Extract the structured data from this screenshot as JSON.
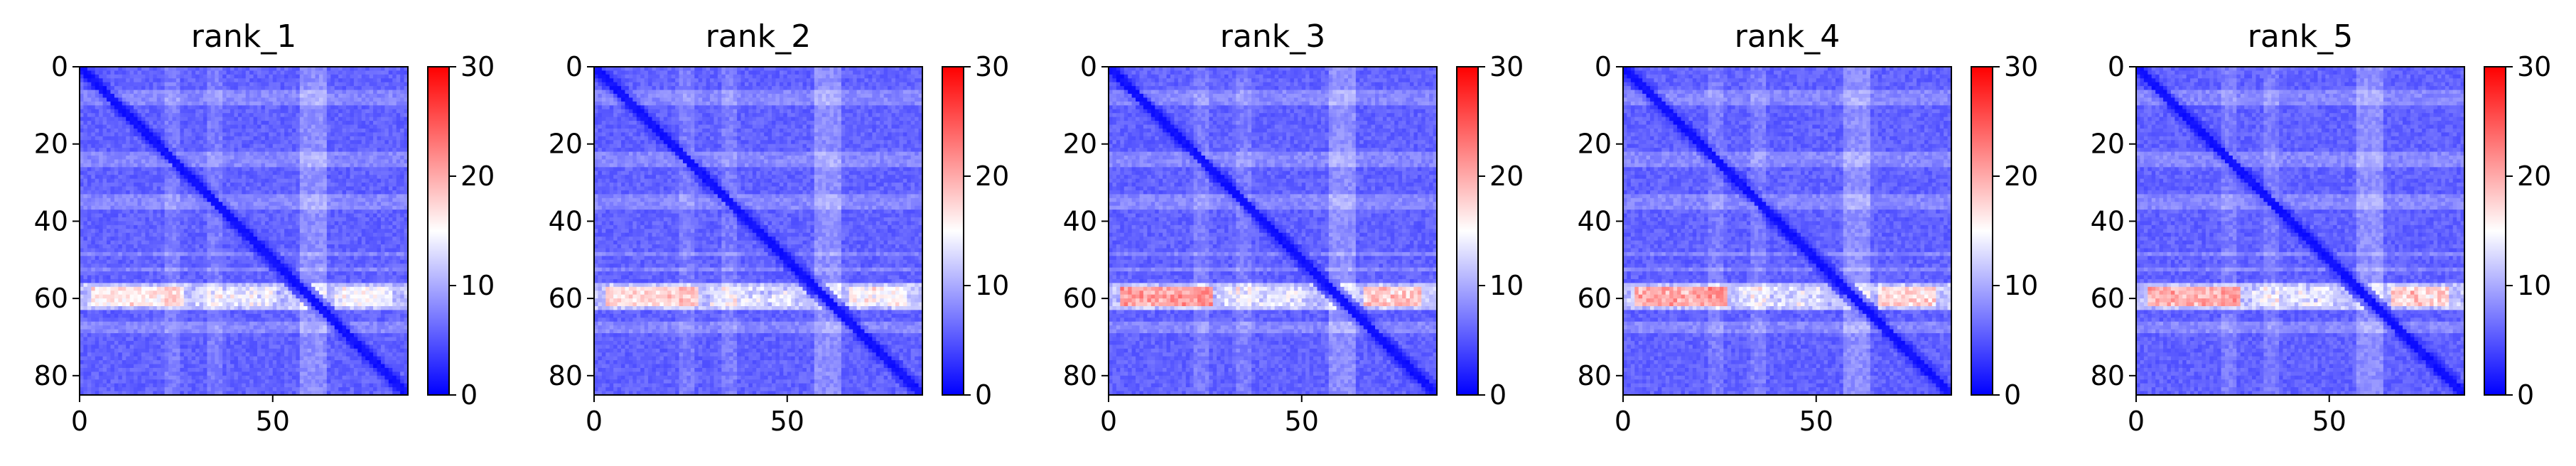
{
  "figure": {
    "panel_titles": [
      "rank_1",
      "rank_2",
      "rank_3",
      "rank_4",
      "rank_5"
    ]
  },
  "chart_data": [
    {
      "type": "heatmap",
      "title": "rank_1",
      "xlabel": "",
      "ylabel": "",
      "xlim": [
        0,
        85
      ],
      "ylim": [
        85,
        0
      ],
      "x_ticks": [
        0,
        50
      ],
      "y_ticks": [
        0,
        20,
        40,
        60,
        80
      ],
      "colorbar": {
        "range": [
          0,
          30
        ],
        "ticks": [
          0,
          10,
          20,
          30
        ],
        "colormap": "bwr",
        "colors": [
          "#0000ff",
          "#ffffff",
          "#ff0000"
        ]
      },
      "grid_size": 85,
      "hot_band_rows": [
        56,
        62
      ],
      "max_value_estimate": 17
    },
    {
      "type": "heatmap",
      "title": "rank_2",
      "xlabel": "",
      "ylabel": "",
      "xlim": [
        0,
        85
      ],
      "ylim": [
        85,
        0
      ],
      "x_ticks": [
        0,
        50
      ],
      "y_ticks": [
        0,
        20,
        40,
        60,
        80
      ],
      "colorbar": {
        "range": [
          0,
          30
        ],
        "ticks": [
          0,
          10,
          20,
          30
        ],
        "colormap": "bwr",
        "colors": [
          "#0000ff",
          "#ffffff",
          "#ff0000"
        ]
      },
      "grid_size": 85,
      "hot_band_rows": [
        56,
        62
      ],
      "max_value_estimate": 18
    },
    {
      "type": "heatmap",
      "title": "rank_3",
      "xlabel": "",
      "ylabel": "",
      "xlim": [
        0,
        85
      ],
      "ylim": [
        85,
        0
      ],
      "x_ticks": [
        0,
        50
      ],
      "y_ticks": [
        0,
        20,
        40,
        60,
        80
      ],
      "colorbar": {
        "range": [
          0,
          30
        ],
        "ticks": [
          0,
          10,
          20,
          30
        ],
        "colormap": "bwr",
        "colors": [
          "#0000ff",
          "#ffffff",
          "#ff0000"
        ]
      },
      "grid_size": 85,
      "hot_band_rows": [
        56,
        62
      ],
      "max_value_estimate": 22
    },
    {
      "type": "heatmap",
      "title": "rank_4",
      "xlabel": "",
      "ylabel": "",
      "xlim": [
        0,
        85
      ],
      "ylim": [
        85,
        0
      ],
      "x_ticks": [
        0,
        50
      ],
      "y_ticks": [
        0,
        20,
        40,
        60,
        80
      ],
      "colorbar": {
        "range": [
          0,
          30
        ],
        "ticks": [
          0,
          10,
          20,
          30
        ],
        "colormap": "bwr",
        "colors": [
          "#0000ff",
          "#ffffff",
          "#ff0000"
        ]
      },
      "grid_size": 85,
      "hot_band_rows": [
        56,
        62
      ],
      "max_value_estimate": 21
    },
    {
      "type": "heatmap",
      "title": "rank_5",
      "xlabel": "",
      "ylabel": "",
      "xlim": [
        0,
        85
      ],
      "ylim": [
        85,
        0
      ],
      "x_ticks": [
        0,
        50
      ],
      "y_ticks": [
        0,
        20,
        40,
        60,
        80
      ],
      "colorbar": {
        "range": [
          0,
          30
        ],
        "ticks": [
          0,
          10,
          20,
          30
        ],
        "colormap": "bwr",
        "colors": [
          "#0000ff",
          "#ffffff",
          "#ff0000"
        ]
      },
      "grid_size": 85,
      "hot_band_rows": [
        56,
        62
      ],
      "max_value_estimate": 21
    }
  ]
}
